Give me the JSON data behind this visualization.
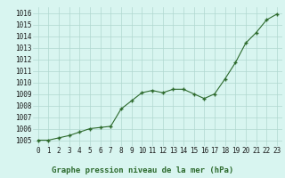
{
  "x": [
    0,
    1,
    2,
    3,
    4,
    5,
    6,
    7,
    8,
    9,
    10,
    11,
    12,
    13,
    14,
    15,
    16,
    17,
    18,
    19,
    20,
    21,
    22,
    23
  ],
  "y": [
    1005.0,
    1005.0,
    1005.2,
    1005.4,
    1005.7,
    1006.0,
    1006.1,
    1006.2,
    1007.7,
    1008.4,
    1009.1,
    1009.3,
    1009.1,
    1009.4,
    1009.4,
    1009.0,
    1008.6,
    1009.0,
    1010.3,
    1011.7,
    1013.4,
    1014.3,
    1015.4,
    1015.9
  ],
  "line_color": "#2d6a2d",
  "marker_color": "#2d6a2d",
  "bg_color": "#d8f5f0",
  "grid_color": "#b0d8d0",
  "title": "Graphe pression niveau de la mer (hPa)",
  "xlabel_ticks": [
    "0",
    "1",
    "2",
    "3",
    "4",
    "5",
    "6",
    "7",
    "8",
    "9",
    "10",
    "11",
    "12",
    "13",
    "14",
    "15",
    "16",
    "17",
    "18",
    "19",
    "20",
    "21",
    "22",
    "23"
  ],
  "yticks": [
    1005,
    1006,
    1007,
    1008,
    1009,
    1010,
    1011,
    1012,
    1013,
    1014,
    1015,
    1016
  ],
  "ylim": [
    1004.5,
    1016.5
  ],
  "xlim": [
    -0.5,
    23.5
  ],
  "title_color": "#2d6a2d",
  "title_fontsize": 6.5,
  "tick_fontsize": 5.5,
  "tick_color": "#1a1a1a"
}
